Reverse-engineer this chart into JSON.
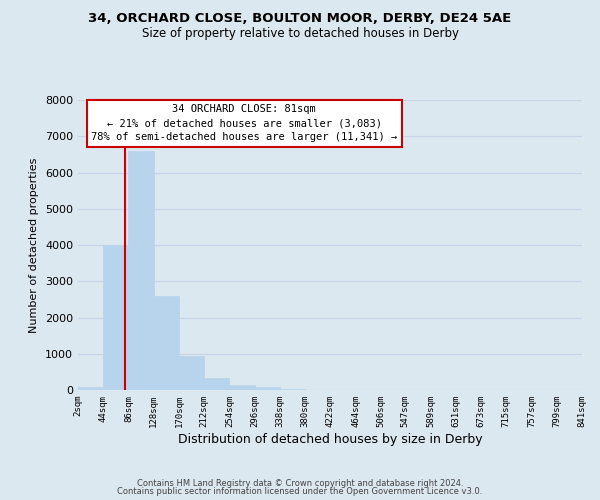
{
  "title": "34, ORCHARD CLOSE, BOULTON MOOR, DERBY, DE24 5AE",
  "subtitle": "Size of property relative to detached houses in Derby",
  "xlabel": "Distribution of detached houses by size in Derby",
  "ylabel": "Number of detached properties",
  "bar_edges": [
    2,
    44,
    86,
    128,
    170,
    212,
    254,
    296,
    338,
    380,
    422,
    464,
    506,
    547,
    589,
    631,
    673,
    715,
    757,
    799,
    841
  ],
  "bar_heights": [
    75,
    4000,
    6600,
    2600,
    950,
    320,
    130,
    70,
    20,
    0,
    0,
    0,
    0,
    0,
    0,
    0,
    0,
    0,
    0,
    0
  ],
  "bar_color": "#b8d4ec",
  "bar_edgecolor": "#b8d4ec",
  "property_line_x": 81,
  "property_line_color": "#cc0000",
  "annotation_text_line1": "34 ORCHARD CLOSE: 81sqm",
  "annotation_text_line2": "← 21% of detached houses are smaller (3,083)",
  "annotation_text_line3": "78% of semi-detached houses are larger (11,341) →",
  "annotation_box_facecolor": "#ffffff",
  "annotation_box_edgecolor": "#cc0000",
  "ylim": [
    0,
    8000
  ],
  "yticks": [
    0,
    1000,
    2000,
    3000,
    4000,
    5000,
    6000,
    7000,
    8000
  ],
  "tick_labels": [
    "2sqm",
    "44sqm",
    "86sqm",
    "128sqm",
    "170sqm",
    "212sqm",
    "254sqm",
    "296sqm",
    "338sqm",
    "380sqm",
    "422sqm",
    "464sqm",
    "506sqm",
    "547sqm",
    "589sqm",
    "631sqm",
    "673sqm",
    "715sqm",
    "757sqm",
    "799sqm",
    "841sqm"
  ],
  "grid_color": "#c8d4e8",
  "background_color": "#dce8f0",
  "footer_line1": "Contains HM Land Registry data © Crown copyright and database right 2024.",
  "footer_line2": "Contains public sector information licensed under the Open Government Licence v3.0."
}
